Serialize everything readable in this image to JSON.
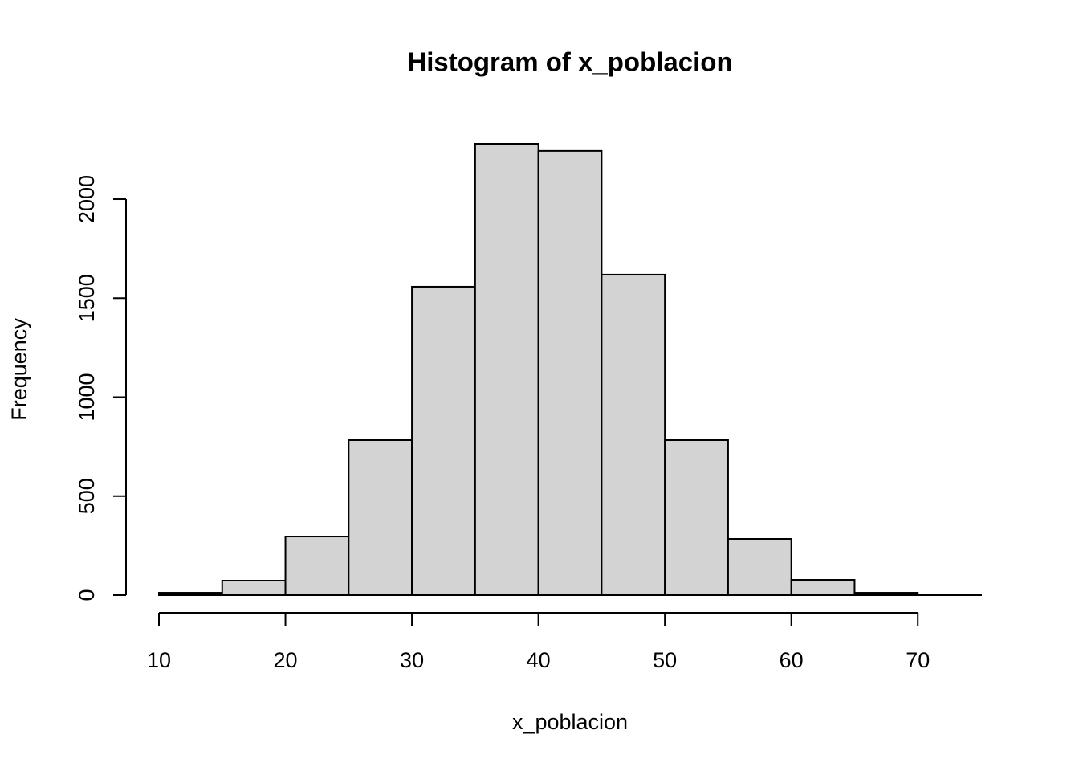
{
  "chart_data": {
    "type": "histogram",
    "title": "Histogram of x_poblacion",
    "x_label": "x_poblacion",
    "y_label": "Frequency",
    "bins": [
      10,
      15,
      20,
      25,
      30,
      35,
      40,
      45,
      50,
      55,
      60,
      65,
      70,
      75
    ],
    "values": [
      12,
      73,
      296,
      783,
      1558,
      2280,
      2244,
      1619,
      783,
      284,
      77,
      12,
      4
    ],
    "color": "#d3d3d3",
    "xlim": [
      10,
      75
    ],
    "xticks": [
      10,
      20,
      30,
      40,
      50,
      60,
      70
    ],
    "ylim": [
      0,
      2280
    ],
    "yticks": [
      0,
      500,
      1000,
      1500,
      2000
    ]
  }
}
